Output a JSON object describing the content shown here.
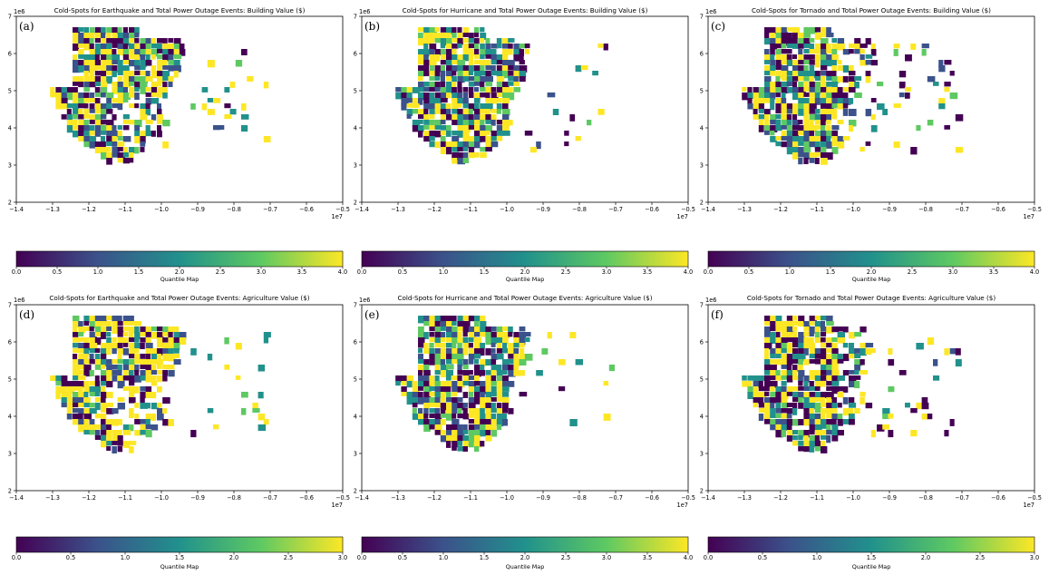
{
  "figure": {
    "colormap": [
      "#440154",
      "#3b528b",
      "#21918c",
      "#5ec962",
      "#fde725"
    ],
    "axis_color": "#000000"
  },
  "panels": [
    {
      "label": "(a)",
      "title": "Cold-Spots for Earthquake and Total Power Outage Events: Building Value ($)",
      "x_ticks": [
        "−1.4",
        "−1.3",
        "−1.2",
        "−1.1",
        "−1.0",
        "−0.9",
        "−0.8",
        "−0.7",
        "−0.6",
        "−0.5"
      ],
      "y_ticks": [
        "2",
        "3",
        "4",
        "5",
        "6",
        "7"
      ],
      "x_offset": "1e7",
      "y_offset": "1e6",
      "xlim": [
        -14000000,
        -5000000
      ],
      "ylim": [
        2000000,
        7000000
      ],
      "colorbar": {
        "label": "Quantile Map",
        "ticks": [
          "0.0",
          "0.5",
          "1.0",
          "1.5",
          "2.0",
          "2.5",
          "3.0",
          "3.5",
          "4.0"
        ],
        "range": [
          0,
          4
        ]
      }
    },
    {
      "label": "(b)",
      "title": "Cold-Spots for Hurricane and Total Power Outage Events: Building Value ($)",
      "x_ticks": [
        "−1.4",
        "−1.3",
        "−1.2",
        "−1.1",
        "−1.0",
        "−0.9",
        "−0.8",
        "−0.7",
        "−0.6",
        "−0.5"
      ],
      "y_ticks": [
        "2",
        "3",
        "4",
        "5",
        "6",
        "7"
      ],
      "x_offset": "1e7",
      "y_offset": "1e6",
      "xlim": [
        -14000000,
        -5000000
      ],
      "ylim": [
        2000000,
        7000000
      ],
      "colorbar": {
        "label": "Quantile Map",
        "ticks": [
          "0.0",
          "0.5",
          "1.0",
          "1.5",
          "2.0",
          "2.5",
          "3.0",
          "3.5",
          "4.0"
        ],
        "range": [
          0,
          4
        ]
      }
    },
    {
      "label": "(c)",
      "title": "Cold-Spots for Tornado and Total Power Outage Events: Building Value ($)",
      "x_ticks": [
        "−1.4",
        "−1.3",
        "−1.2",
        "−1.1",
        "−1.0",
        "−0.9",
        "−0.8",
        "−0.7",
        "−0.6",
        "−0.5"
      ],
      "y_ticks": [
        "2",
        "3",
        "4",
        "5",
        "6",
        "7"
      ],
      "x_offset": "1e7",
      "y_offset": "1e6",
      "xlim": [
        -14000000,
        -5000000
      ],
      "ylim": [
        2000000,
        7000000
      ],
      "colorbar": {
        "label": "Quantile Map",
        "ticks": [
          "0.0",
          "0.5",
          "1.0",
          "1.5",
          "2.0",
          "2.5",
          "3.0",
          "3.5",
          "4.0"
        ],
        "range": [
          0,
          4
        ]
      }
    },
    {
      "label": "(d)",
      "title": "Cold-Spots for Earthquake and Total Power Outage Events: Agriculture Value ($)",
      "x_ticks": [
        "−1.4",
        "−1.3",
        "−1.2",
        "−1.1",
        "−1.0",
        "−0.9",
        "−0.8",
        "−0.7",
        "−0.6",
        "−0.5"
      ],
      "y_ticks": [
        "2",
        "3",
        "4",
        "5",
        "6",
        "7"
      ],
      "x_offset": "1e7",
      "y_offset": "1e6",
      "xlim": [
        -14000000,
        -5000000
      ],
      "ylim": [
        2000000,
        7000000
      ],
      "colorbar": {
        "label": "Quantile Map",
        "ticks": [
          "0.0",
          "0.5",
          "1.0",
          "1.5",
          "2.0",
          "2.5",
          "3.0"
        ],
        "range": [
          0,
          3
        ]
      }
    },
    {
      "label": "(e)",
      "title": "Cold-Spots for Hurricane and Total Power Outage Events: Agriculture Value ($)",
      "x_ticks": [
        "−1.4",
        "−1.3",
        "−1.2",
        "−1.1",
        "−1.0",
        "−0.9",
        "−0.8",
        "−0.7",
        "−0.6",
        "−0.5"
      ],
      "y_ticks": [
        "2",
        "3",
        "4",
        "5",
        "6",
        "7"
      ],
      "x_offset": "1e7",
      "y_offset": "1e6",
      "xlim": [
        -14000000,
        -5000000
      ],
      "ylim": [
        2000000,
        7000000
      ],
      "colorbar": {
        "label": "Quantile Map",
        "ticks": [
          "0.0",
          "0.5",
          "1.0",
          "1.5",
          "2.0",
          "2.5",
          "3.0",
          "3.5",
          "4.0"
        ],
        "range": [
          0,
          4
        ]
      }
    },
    {
      "label": "(f)",
      "title": "Cold-Spots for Tornado and Total Power Outage Events: Agriculture Value ($)",
      "x_ticks": [
        "−1.4",
        "−1.3",
        "−1.2",
        "−1.1",
        "−1.0",
        "−0.9",
        "−0.8",
        "−0.7",
        "−0.6",
        "−0.5"
      ],
      "y_ticks": [
        "2",
        "3",
        "4",
        "5",
        "6",
        "7"
      ],
      "x_offset": "1e7",
      "y_offset": "1e6",
      "xlim": [
        -14000000,
        -5000000
      ],
      "ylim": [
        2000000,
        7000000
      ],
      "colorbar": {
        "label": "Quantile Map",
        "ticks": [
          "0.0",
          "0.5",
          "1.0",
          "1.5",
          "2.0",
          "2.5",
          "3.0"
        ],
        "range": [
          0,
          3
        ]
      }
    }
  ]
}
